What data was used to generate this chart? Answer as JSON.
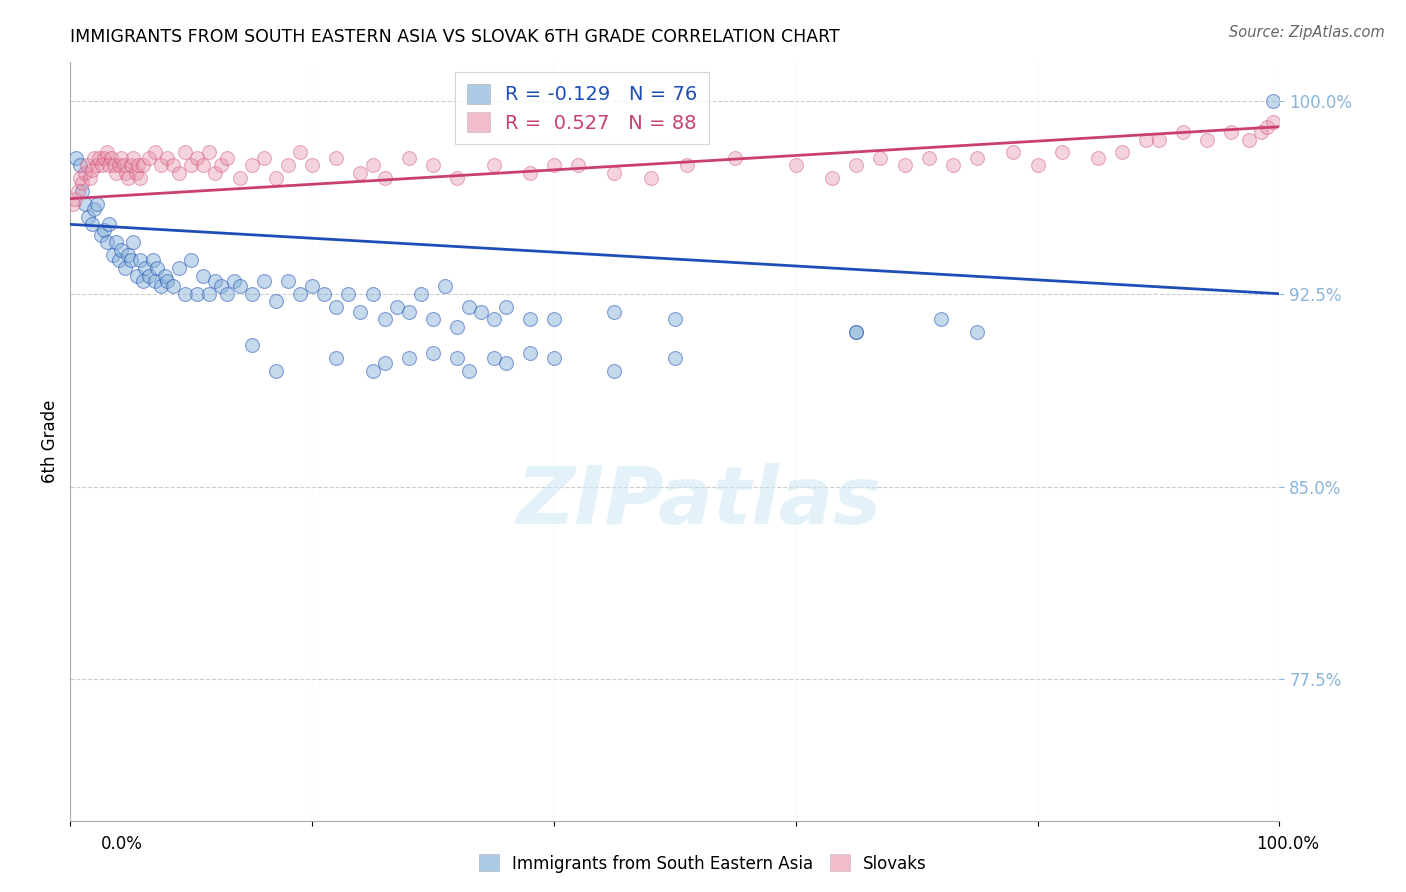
{
  "title": "IMMIGRANTS FROM SOUTH EASTERN ASIA VS SLOVAK 6TH GRADE CORRELATION CHART",
  "source": "Source: ZipAtlas.com",
  "ylabel": "6th Grade",
  "yticks": [
    100.0,
    92.5,
    85.0,
    77.5
  ],
  "ytick_labels": [
    "100.0%",
    "92.5%",
    "85.0%",
    "77.5%"
  ],
  "blue_color": "#8ab4d9",
  "pink_color": "#e891a8",
  "blue_line_color": "#1f4db7",
  "pink_line_color": "#c94070",
  "watermark_text": "ZIPatlas",
  "blue_r": "-0.129",
  "blue_n": "76",
  "pink_r": "0.527",
  "pink_n": "88",
  "blue_points_x": [
    0.5,
    0.8,
    1.0,
    1.2,
    1.5,
    1.8,
    2.0,
    2.2,
    2.5,
    2.8,
    3.0,
    3.2,
    3.5,
    3.8,
    4.0,
    4.2,
    4.5,
    4.8,
    5.0,
    5.2,
    5.5,
    5.8,
    6.0,
    6.2,
    6.5,
    6.8,
    7.0,
    7.2,
    7.5,
    7.8,
    8.0,
    8.5,
    9.0,
    9.5,
    10.0,
    10.5,
    11.0,
    11.5,
    12.0,
    12.5,
    13.0,
    13.5,
    14.0,
    15.0,
    16.0,
    17.0,
    18.0,
    19.0,
    20.0,
    21.0,
    22.0,
    23.0,
    24.0,
    25.0,
    26.0,
    27.0,
    28.0,
    29.0,
    30.0,
    31.0,
    32.0,
    33.0,
    34.0,
    35.0,
    36.0,
    38.0,
    40.0,
    45.0,
    50.0,
    65.0,
    72.0,
    75.0,
    99.5
  ],
  "blue_points_y": [
    97.8,
    97.5,
    96.5,
    96.0,
    95.5,
    95.2,
    95.8,
    96.0,
    94.8,
    95.0,
    94.5,
    95.2,
    94.0,
    94.5,
    93.8,
    94.2,
    93.5,
    94.0,
    93.8,
    94.5,
    93.2,
    93.8,
    93.0,
    93.5,
    93.2,
    93.8,
    93.0,
    93.5,
    92.8,
    93.2,
    93.0,
    92.8,
    93.5,
    92.5,
    93.8,
    92.5,
    93.2,
    92.5,
    93.0,
    92.8,
    92.5,
    93.0,
    92.8,
    92.5,
    93.0,
    92.2,
    93.0,
    92.5,
    92.8,
    92.5,
    92.0,
    92.5,
    91.8,
    92.5,
    91.5,
    92.0,
    91.8,
    92.5,
    91.5,
    92.8,
    91.2,
    92.0,
    91.8,
    91.5,
    92.0,
    91.5,
    91.5,
    91.8,
    91.5,
    91.0,
    91.5,
    91.0,
    100.0
  ],
  "pink_points_x": [
    0.2,
    0.4,
    0.6,
    0.8,
    1.0,
    1.2,
    1.4,
    1.6,
    1.8,
    2.0,
    2.2,
    2.4,
    2.6,
    2.8,
    3.0,
    3.2,
    3.4,
    3.6,
    3.8,
    4.0,
    4.2,
    4.4,
    4.6,
    4.8,
    5.0,
    5.2,
    5.4,
    5.6,
    5.8,
    6.0,
    6.5,
    7.0,
    7.5,
    8.0,
    8.5,
    9.0,
    9.5,
    10.0,
    10.5,
    11.0,
    11.5,
    12.0,
    12.5,
    13.0,
    14.0,
    15.0,
    16.0,
    17.0,
    18.0,
    19.0,
    20.0,
    22.0,
    24.0,
    25.0,
    26.0,
    28.0,
    30.0,
    32.0,
    35.0,
    38.0,
    40.0,
    42.0,
    45.0,
    48.0,
    51.0,
    55.0,
    60.0,
    63.0,
    65.0,
    67.0,
    69.0,
    71.0,
    73.0,
    75.0,
    78.0,
    80.0,
    82.0,
    85.0,
    87.0,
    89.0,
    90.0,
    92.0,
    94.0,
    96.0,
    97.5,
    98.5,
    99.0,
    99.5
  ],
  "pink_points_y": [
    96.0,
    96.2,
    96.5,
    97.0,
    96.8,
    97.2,
    97.5,
    97.0,
    97.3,
    97.8,
    97.5,
    97.8,
    97.5,
    97.8,
    98.0,
    97.5,
    97.8,
    97.5,
    97.2,
    97.5,
    97.8,
    97.5,
    97.2,
    97.0,
    97.5,
    97.8,
    97.2,
    97.5,
    97.0,
    97.5,
    97.8,
    98.0,
    97.5,
    97.8,
    97.5,
    97.2,
    98.0,
    97.5,
    97.8,
    97.5,
    98.0,
    97.2,
    97.5,
    97.8,
    97.0,
    97.5,
    97.8,
    97.0,
    97.5,
    98.0,
    97.5,
    97.8,
    97.2,
    97.5,
    97.0,
    97.8,
    97.5,
    97.0,
    97.5,
    97.2,
    97.5,
    97.5,
    97.2,
    97.0,
    97.5,
    97.8,
    97.5,
    97.0,
    97.5,
    97.8,
    97.5,
    97.8,
    97.5,
    97.8,
    98.0,
    97.5,
    98.0,
    97.8,
    98.0,
    98.5,
    98.5,
    98.8,
    98.5,
    98.8,
    98.5,
    98.8,
    99.0,
    99.2
  ],
  "blue_trendline_x": [
    0,
    100
  ],
  "blue_trendline_y": [
    95.2,
    92.5
  ],
  "pink_trendline_x": [
    0,
    100
  ],
  "pink_trendline_y": [
    96.2,
    99.0
  ],
  "xlim": [
    0,
    100
  ],
  "ylim": [
    72.0,
    101.5
  ],
  "extra_blue_points_x": [
    15.0,
    17.0,
    22.0,
    25.0,
    26.0,
    28.0,
    30.0,
    32.0,
    33.0,
    35.0,
    36.0,
    38.0,
    40.0,
    45.0,
    50.0,
    65.0
  ],
  "extra_blue_points_y": [
    90.5,
    89.5,
    90.0,
    89.5,
    89.8,
    90.0,
    90.2,
    90.0,
    89.5,
    90.0,
    89.8,
    90.2,
    90.0,
    89.5,
    90.0,
    91.0
  ]
}
